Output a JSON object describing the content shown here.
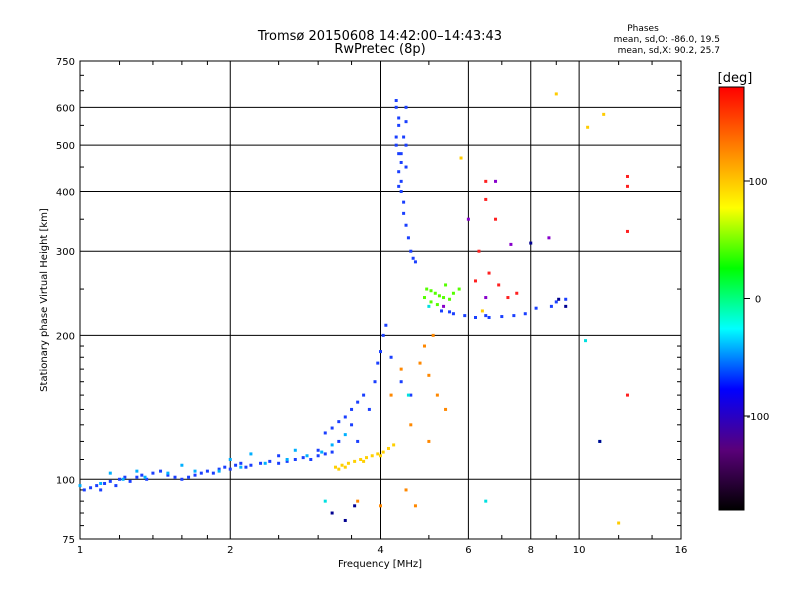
{
  "chart_data": {
    "type": "scatter",
    "title": "Tromsø 20150608 14:42:00–14:43:43",
    "subtitle": "RwPretec (8p)",
    "xlabel": "Frequency [MHz]",
    "ylabel": "Stationary phase Virtual Height [km]",
    "x_scale": "log",
    "y_scale": "log",
    "xlim": [
      1,
      16
    ],
    "ylim": [
      75,
      750
    ],
    "x_ticks": [
      1,
      2,
      4,
      6,
      8,
      10,
      16
    ],
    "y_ticks": [
      75,
      100,
      200,
      300,
      400,
      500,
      600,
      750
    ],
    "x_grid": [
      2,
      4,
      6,
      8,
      10
    ],
    "y_grid": [
      100,
      200,
      300,
      400,
      500,
      600
    ],
    "grid": true,
    "phases_header": "Phases",
    "phases_lines": [
      "mean, sd,O: -86.0, 19.5",
      "mean, sd,X:  90.2, 25.7"
    ],
    "colorbar": {
      "label": "[deg]",
      "range": [
        -180,
        180
      ],
      "ticks": [
        100,
        0,
        -100
      ],
      "colors": [
        "#000000",
        "#5a007a",
        "#0000ff",
        "#00ffff",
        "#00ff00",
        "#ffff00",
        "#ff8000",
        "#ff0000"
      ]
    },
    "series": [
      {
        "color": "#1a3fff",
        "points": [
          [
            1.02,
            95
          ],
          [
            1.05,
            96
          ],
          [
            1.08,
            97
          ],
          [
            1.1,
            95
          ],
          [
            1.12,
            98
          ],
          [
            1.15,
            99
          ],
          [
            1.18,
            97
          ],
          [
            1.2,
            100
          ],
          [
            1.23,
            101
          ],
          [
            1.26,
            99
          ],
          [
            1.3,
            101
          ],
          [
            1.33,
            102
          ],
          [
            1.36,
            100
          ],
          [
            1.4,
            103
          ],
          [
            1.45,
            104
          ],
          [
            1.5,
            102
          ],
          [
            1.55,
            101
          ],
          [
            1.6,
            100
          ],
          [
            1.65,
            101
          ],
          [
            1.7,
            102
          ],
          [
            1.75,
            103
          ],
          [
            1.8,
            104
          ],
          [
            1.85,
            103
          ],
          [
            1.9,
            105
          ],
          [
            1.95,
            106
          ],
          [
            2.0,
            105
          ],
          [
            2.05,
            107
          ],
          [
            2.1,
            108
          ],
          [
            2.15,
            106
          ],
          [
            2.2,
            107
          ],
          [
            2.3,
            108
          ],
          [
            2.4,
            109
          ],
          [
            2.5,
            108
          ],
          [
            2.6,
            109
          ],
          [
            2.7,
            110
          ],
          [
            2.8,
            111
          ],
          [
            2.9,
            110
          ],
          [
            3.0,
            112
          ],
          [
            3.1,
            113
          ],
          [
            3.2,
            114
          ],
          [
            3.1,
            125
          ],
          [
            3.2,
            128
          ],
          [
            3.3,
            132
          ],
          [
            3.4,
            135
          ],
          [
            3.5,
            140
          ],
          [
            3.6,
            145
          ],
          [
            3.7,
            150
          ],
          [
            3.5,
            130
          ],
          [
            3.3,
            120
          ],
          [
            3.0,
            115
          ],
          [
            3.9,
            160
          ],
          [
            3.95,
            175
          ],
          [
            4.0,
            185
          ],
          [
            4.05,
            200
          ],
          [
            4.1,
            210
          ],
          [
            4.3,
            620
          ],
          [
            4.3,
            600
          ],
          [
            4.35,
            570
          ],
          [
            4.35,
            550
          ],
          [
            4.3,
            520
          ],
          [
            4.3,
            500
          ],
          [
            4.35,
            480
          ],
          [
            4.4,
            460
          ],
          [
            4.35,
            440
          ],
          [
            4.4,
            420
          ],
          [
            4.4,
            400
          ],
          [
            4.45,
            380
          ],
          [
            4.45,
            360
          ],
          [
            4.5,
            340
          ],
          [
            4.55,
            320
          ],
          [
            4.6,
            300
          ],
          [
            4.65,
            290
          ],
          [
            4.7,
            285
          ],
          [
            4.5,
            600
          ],
          [
            4.5,
            560
          ],
          [
            4.45,
            520
          ],
          [
            4.5,
            500
          ],
          [
            4.4,
            480
          ],
          [
            4.5,
            450
          ],
          [
            4.35,
            410
          ],
          [
            5.3,
            225
          ],
          [
            5.6,
            222
          ],
          [
            5.9,
            220
          ],
          [
            6.2,
            218
          ],
          [
            6.6,
            218
          ],
          [
            7.0,
            219
          ],
          [
            7.4,
            220
          ],
          [
            7.8,
            222
          ],
          [
            8.2,
            228
          ],
          [
            9.0,
            235
          ],
          [
            9.4,
            238
          ],
          [
            8.8,
            230
          ],
          [
            6.5,
            220
          ],
          [
            5.5,
            224
          ],
          [
            4.2,
            180
          ],
          [
            4.4,
            160
          ],
          [
            4.6,
            150
          ],
          [
            3.8,
            140
          ],
          [
            3.6,
            120
          ],
          [
            2.5,
            112
          ]
        ]
      },
      {
        "color": "#00b0ff",
        "points": [
          [
            1.0,
            97
          ],
          [
            1.1,
            98
          ],
          [
            1.22,
            100
          ],
          [
            1.35,
            101
          ],
          [
            1.5,
            103
          ],
          [
            1.7,
            104
          ],
          [
            1.9,
            104
          ],
          [
            2.1,
            106
          ],
          [
            2.35,
            108
          ],
          [
            2.6,
            110
          ],
          [
            2.85,
            112
          ],
          [
            3.05,
            114
          ],
          [
            3.2,
            118
          ],
          [
            2.2,
            113
          ],
          [
            1.6,
            107
          ],
          [
            1.3,
            104
          ],
          [
            2.7,
            115
          ],
          [
            3.4,
            124
          ],
          [
            1.15,
            103
          ],
          [
            2.0,
            110
          ]
        ]
      },
      {
        "color": "#ffd000",
        "points": [
          [
            3.25,
            106
          ],
          [
            3.35,
            107
          ],
          [
            3.45,
            108
          ],
          [
            3.55,
            109
          ],
          [
            3.65,
            110
          ],
          [
            3.75,
            111
          ],
          [
            3.85,
            112
          ],
          [
            3.95,
            113
          ],
          [
            4.05,
            114
          ],
          [
            4.15,
            116
          ],
          [
            4.25,
            118
          ],
          [
            3.4,
            106
          ],
          [
            3.7,
            109
          ],
          [
            4.0,
            112
          ],
          [
            3.3,
            105
          ]
        ]
      },
      {
        "color": "#55ff00",
        "points": [
          [
            4.95,
            250
          ],
          [
            5.05,
            248
          ],
          [
            5.15,
            245
          ],
          [
            5.25,
            242
          ],
          [
            5.35,
            240
          ],
          [
            5.5,
            238
          ],
          [
            5.05,
            235
          ],
          [
            5.2,
            232
          ],
          [
            5.6,
            245
          ],
          [
            5.75,
            250
          ],
          [
            4.9,
            240
          ],
          [
            5.4,
            255
          ]
        ]
      },
      {
        "color": "#ff8800",
        "points": [
          [
            4.8,
            175
          ],
          [
            5.0,
            165
          ],
          [
            5.2,
            150
          ],
          [
            5.4,
            140
          ],
          [
            4.6,
            130
          ],
          [
            4.9,
            190
          ],
          [
            5.1,
            200
          ],
          [
            4.2,
            150
          ],
          [
            4.4,
            170
          ],
          [
            5.0,
            120
          ],
          [
            4.5,
            95
          ],
          [
            3.6,
            90
          ],
          [
            4.0,
            88
          ],
          [
            4.7,
            88
          ]
        ]
      },
      {
        "color": "#ff2020",
        "points": [
          [
            6.3,
            300
          ],
          [
            6.6,
            270
          ],
          [
            6.9,
            255
          ],
          [
            7.2,
            240
          ],
          [
            7.5,
            245
          ],
          [
            6.8,
            350
          ],
          [
            6.2,
            260
          ],
          [
            12.5,
            150
          ],
          [
            12.5,
            430
          ],
          [
            12.5,
            410
          ],
          [
            12.5,
            330
          ],
          [
            6.5,
            420
          ],
          [
            6.5,
            385
          ]
        ]
      },
      {
        "color": "#ffcc00",
        "points": [
          [
            9.0,
            640
          ],
          [
            10.4,
            545
          ],
          [
            11.2,
            580
          ],
          [
            12.0,
            81
          ],
          [
            5.8,
            470
          ],
          [
            6.4,
            225
          ]
        ]
      },
      {
        "color": "#8800cc",
        "points": [
          [
            5.35,
            230
          ],
          [
            6.0,
            350
          ],
          [
            6.8,
            420
          ],
          [
            8.7,
            320
          ],
          [
            7.3,
            310
          ],
          [
            6.5,
            240
          ]
        ]
      },
      {
        "color": "#00e0e0",
        "points": [
          [
            11.0,
            120
          ],
          [
            10.3,
            195
          ],
          [
            6.5,
            90
          ],
          [
            3.1,
            90
          ],
          [
            4.55,
            150
          ],
          [
            5.0,
            230
          ]
        ]
      },
      {
        "color": "#000090",
        "points": [
          [
            3.4,
            82
          ],
          [
            3.2,
            85
          ],
          [
            3.55,
            88
          ],
          [
            9.4,
            230
          ],
          [
            9.1,
            238
          ],
          [
            8.0,
            312
          ],
          [
            11.0,
            120
          ]
        ]
      }
    ]
  }
}
